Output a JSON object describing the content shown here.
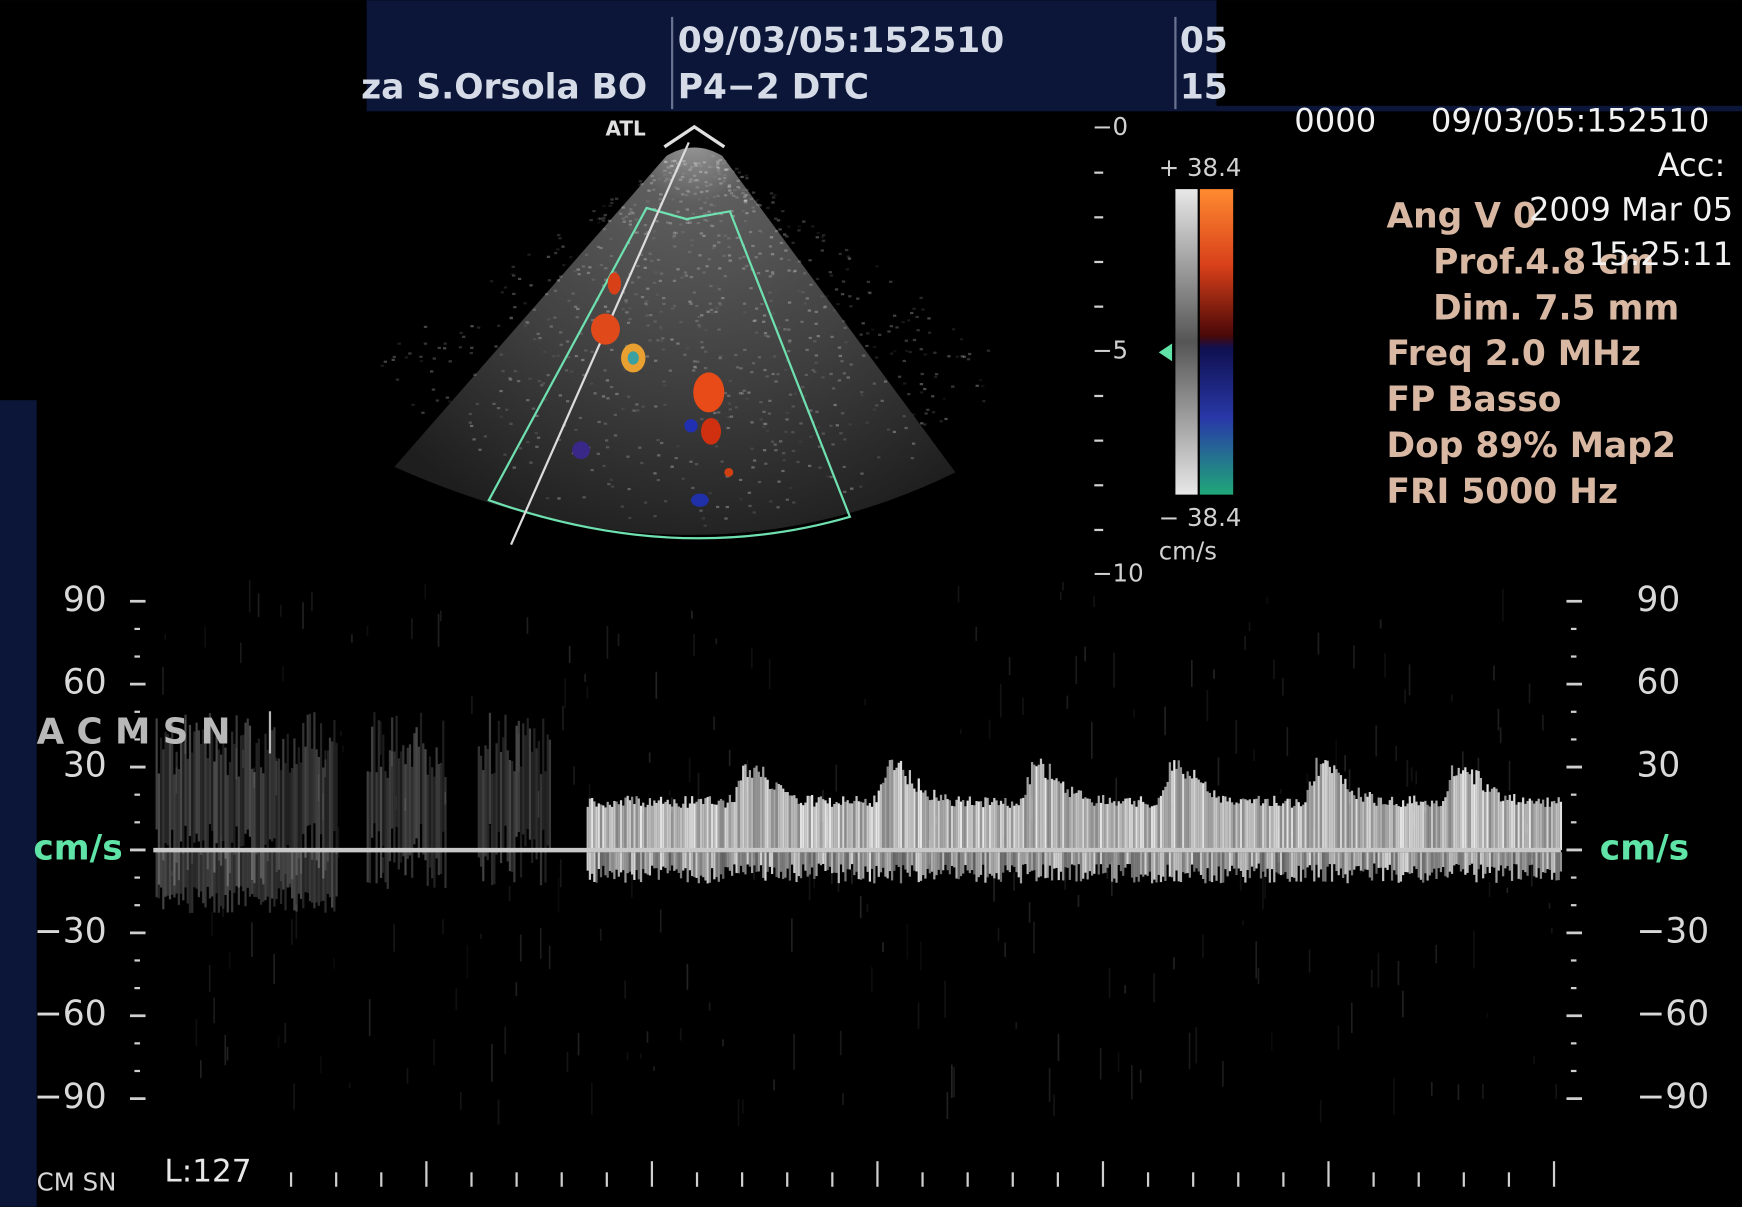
{
  "header": {
    "site": "za S.Orsola BO",
    "datetime": "09/03/05:152510",
    "probe": "P4−2 DTC",
    "col3_line1": "05",
    "col3_line2": "15"
  },
  "brand": "ATL",
  "depth_scale": {
    "labels": [
      "−0",
      "−5",
      "−10"
    ]
  },
  "color_bar": {
    "max_label": "+ 38.4",
    "min_label": "− 38.4",
    "unit": "cm/s"
  },
  "info_panel": {
    "id": "0000",
    "datetime": "09/03/05:152510",
    "acc": "Acc:",
    "date": "2009 Mar 05",
    "time": "15:25:11",
    "params": [
      "Ang V 0",
      "Prof.4.8  cm",
      "Dim. 7.5  mm",
      "Freq 2.0  MHz",
      "FP Basso",
      "Dop 89%  Map2",
      "FRI 5000  Hz"
    ]
  },
  "doppler": {
    "left_scale": [
      "90",
      "60",
      "30",
      "cm/s",
      "−30",
      "−60",
      "−90"
    ],
    "right_scale": [
      "90",
      "60",
      "30",
      "cm/s",
      "−30",
      "−60",
      "−90"
    ],
    "vessel_label": "A C M   S N",
    "footer_left": "CM SN",
    "footer_level": "L:127"
  }
}
